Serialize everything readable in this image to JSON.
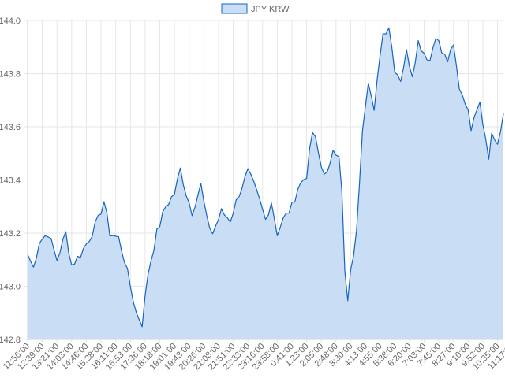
{
  "chart_data": {
    "type": "area",
    "title": "",
    "xlabel": "",
    "ylabel": "",
    "legend": {
      "position": "top-center",
      "entries": [
        "JPY KRW"
      ]
    },
    "grid": true,
    "series": [
      {
        "name": "JPY KRW",
        "color": "#1565c0",
        "fill": "#c9def4",
        "anchors": [
          [
            0,
            143.12
          ],
          [
            2,
            143.07
          ],
          [
            4,
            143.17
          ],
          [
            7,
            143.2
          ],
          [
            10,
            143.1
          ],
          [
            13,
            143.2
          ],
          [
            15,
            143.08
          ],
          [
            18,
            143.12
          ],
          [
            21,
            143.18
          ],
          [
            24,
            143.25
          ],
          [
            26,
            143.32
          ],
          [
            28,
            143.2
          ],
          [
            31,
            143.18
          ],
          [
            33,
            143.1
          ],
          [
            35,
            143.0
          ],
          [
            37,
            142.9
          ],
          [
            39,
            142.86
          ],
          [
            41,
            143.05
          ],
          [
            44,
            143.2
          ],
          [
            47,
            143.3
          ],
          [
            50,
            143.35
          ],
          [
            52,
            143.44
          ],
          [
            54,
            143.35
          ],
          [
            56,
            143.28
          ],
          [
            59,
            143.38
          ],
          [
            61,
            143.25
          ],
          [
            63,
            143.2
          ],
          [
            66,
            143.28
          ],
          [
            69,
            143.25
          ],
          [
            72,
            143.35
          ],
          [
            75,
            143.43
          ],
          [
            77,
            143.38
          ],
          [
            79,
            143.32
          ],
          [
            81,
            143.25
          ],
          [
            83,
            143.32
          ],
          [
            85,
            143.2
          ],
          [
            87,
            143.25
          ],
          [
            90,
            143.3
          ],
          [
            92,
            143.37
          ],
          [
            95,
            143.42
          ],
          [
            97,
            143.58
          ],
          [
            98,
            143.55
          ],
          [
            100,
            143.45
          ],
          [
            102,
            143.42
          ],
          [
            103,
            143.45
          ],
          [
            104,
            143.52
          ],
          [
            106,
            143.5
          ],
          [
            107,
            143.35
          ],
          [
            108,
            143.05
          ],
          [
            109,
            142.94
          ],
          [
            110,
            143.05
          ],
          [
            112,
            143.2
          ],
          [
            113,
            143.4
          ],
          [
            114,
            143.6
          ],
          [
            116,
            143.78
          ],
          [
            118,
            143.65
          ],
          [
            120,
            143.88
          ],
          [
            121,
            143.95
          ],
          [
            123,
            143.98
          ],
          [
            125,
            143.82
          ],
          [
            127,
            143.78
          ],
          [
            129,
            143.88
          ],
          [
            131,
            143.8
          ],
          [
            133,
            143.92
          ],
          [
            135,
            143.88
          ],
          [
            137,
            143.85
          ],
          [
            139,
            143.95
          ],
          [
            141,
            143.88
          ],
          [
            143,
            143.85
          ],
          [
            145,
            143.9
          ],
          [
            147,
            143.75
          ],
          [
            149,
            143.7
          ],
          [
            151,
            143.6
          ],
          [
            152,
            143.65
          ],
          [
            154,
            143.7
          ],
          [
            156,
            143.55
          ],
          [
            157,
            143.48
          ],
          [
            158,
            143.58
          ],
          [
            160,
            143.52
          ],
          [
            161,
            143.58
          ],
          [
            162,
            143.65
          ]
        ]
      }
    ],
    "y_ticks": [
      "144.0",
      "143.8",
      "143.6",
      "143.4",
      "143.2",
      "143.0",
      "142.8"
    ],
    "ylim": [
      142.8,
      144.0
    ],
    "x_ticks": [
      "11:56:00",
      "12:39:00",
      "13:21:00",
      "14:03:00",
      "14:46:00",
      "15:28:00",
      "16:11:00",
      "16:53:00",
      "17:36:00",
      "18:18:00",
      "19:01:00",
      "19:43:00",
      "20:26:00",
      "21:08:00",
      "21:51:00",
      "22:33:00",
      "23:16:00",
      "23:58:00",
      "0:41:00",
      "1:23:00",
      "2:05:00",
      "2:48:00",
      "3:30:00",
      "4:13:00",
      "4:55:00",
      "5:38:00",
      "6:20:00",
      "7:03:00",
      "7:45:00",
      "8:27:00",
      "9:10:00",
      "9:52:00",
      "10:35:00",
      "11:17:00"
    ],
    "x_tick_step": 5,
    "x_count": 163
  }
}
